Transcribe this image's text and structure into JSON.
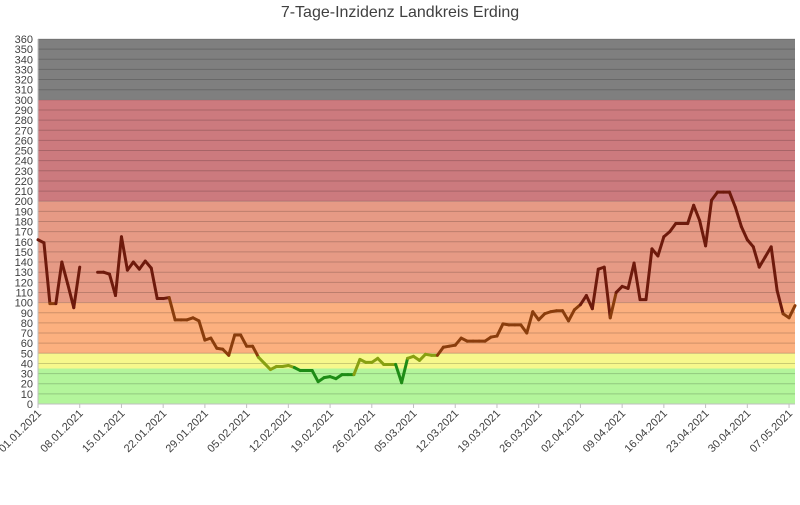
{
  "chart_data": {
    "type": "line",
    "title": "7-Tage-Inzidenz Landkreis Erding",
    "xlabel": "",
    "ylabel": "",
    "ylim": [
      0,
      360
    ],
    "y_ticks": [
      0,
      10,
      20,
      30,
      40,
      50,
      60,
      70,
      80,
      90,
      100,
      110,
      120,
      130,
      140,
      150,
      160,
      170,
      180,
      190,
      200,
      210,
      220,
      230,
      240,
      250,
      260,
      270,
      280,
      290,
      300,
      310,
      320,
      330,
      340,
      350,
      360
    ],
    "x_tick_labels": [
      "01.01.2021",
      "08.01.2021",
      "15.01.2021",
      "22.01.2021",
      "29.01.2021",
      "05.02.2021",
      "12.02.2021",
      "19.02.2021",
      "26.02.2021",
      "05.03.2021",
      "12.03.2021",
      "19.03.2021",
      "26.03.2021",
      "02.04.2021",
      "09.04.2021",
      "16.04.2021",
      "23.04.2021",
      "30.04.2021",
      "07.05.2021"
    ],
    "grid": true,
    "legend": "none",
    "background_bands": [
      {
        "from": 0,
        "to": 35,
        "color": "#b3f59b"
      },
      {
        "from": 35,
        "to": 50,
        "color": "#f7f88c"
      },
      {
        "from": 50,
        "to": 100,
        "color": "#fcb07f"
      },
      {
        "from": 100,
        "to": 200,
        "color": "#e69a85"
      },
      {
        "from": 200,
        "to": 300,
        "color": "#cc7a7e"
      },
      {
        "from": 300,
        "to": 360,
        "color": "#7f7f7f"
      }
    ],
    "series": [
      {
        "x_start": "01.01.2021",
        "x_step_days": 1,
        "values": [
          162,
          159,
          99,
          99,
          140,
          118,
          95,
          135,
          null,
          null,
          130,
          130,
          128,
          107,
          165,
          132,
          140,
          133,
          141,
          134,
          104,
          104,
          105,
          83,
          83,
          83,
          85,
          82,
          63,
          65,
          55,
          54,
          48,
          68,
          68,
          57,
          57,
          46,
          40,
          34,
          37,
          37,
          38,
          36,
          33,
          33,
          33,
          22,
          26,
          27,
          25,
          29,
          29,
          29,
          44,
          41,
          41,
          45,
          39,
          39,
          39,
          21,
          45,
          47,
          43,
          49,
          48,
          48,
          56,
          57,
          58,
          65,
          62,
          62,
          62,
          62,
          66,
          67,
          79,
          78,
          78,
          78,
          70,
          91,
          83,
          89,
          91,
          92,
          92,
          82,
          93,
          98,
          107,
          94,
          133,
          135,
          85,
          110,
          116,
          114,
          139,
          103,
          103,
          153,
          146,
          165,
          170,
          178,
          178,
          178,
          196,
          181,
          156,
          201,
          209,
          209,
          209,
          194,
          175,
          162,
          155,
          135,
          145,
          155,
          112,
          89,
          85,
          97
        ],
        "color_ranges": [
          {
            "from": 0,
            "to": 35,
            "color": "#1e8c16"
          },
          {
            "from": 35,
            "to": 50,
            "color": "#88a012"
          },
          {
            "from": 50,
            "to": 100,
            "color": "#8a3d0c"
          },
          {
            "from": 100,
            "to": 360,
            "color": "#6e1a0c"
          }
        ]
      }
    ]
  }
}
